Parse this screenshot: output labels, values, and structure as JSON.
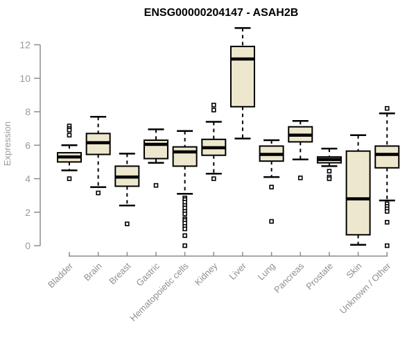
{
  "header": {
    "title": "ENSG00000204147 - ASAH2B"
  },
  "colors": {
    "box_fill": "#EDE8CD",
    "box_stroke": "#000000",
    "median": "#000000",
    "whisker": "#000000",
    "outlier_stroke": "#000000",
    "outlier_fill": "#ffffff",
    "axis_line": "#8c8c8c",
    "tick_text": "#9a9a9a",
    "title_text": "#000000",
    "background": "#ffffff"
  },
  "chart_data": {
    "type": "boxplot",
    "title": "ENSG00000204147 - ASAH2B",
    "xlabel": "",
    "ylabel": "Expression",
    "ylim": [
      0,
      13.2
    ],
    "yticks": [
      0,
      2,
      4,
      6,
      8,
      10,
      12
    ],
    "grid": false,
    "legend": "none",
    "categories": [
      "Bladder",
      "Brain",
      "Breast",
      "Gastric",
      "Hematopoietic cells",
      "Kidney",
      "Liver",
      "Lung",
      "Pancreas",
      "Prostate",
      "Skin",
      "Unknown / Other"
    ],
    "series": [
      {
        "label": "Bladder",
        "whisker_low": 4.5,
        "q1": 5.0,
        "median": 5.3,
        "q3": 5.55,
        "whisker_high": 6.0,
        "outliers": [
          7.15,
          7.0,
          6.9,
          6.6,
          4.0
        ]
      },
      {
        "label": "Brain",
        "whisker_low": 3.5,
        "q1": 5.45,
        "median": 6.15,
        "q3": 6.7,
        "whisker_high": 7.7,
        "outliers": [
          3.15
        ]
      },
      {
        "label": "Breast",
        "whisker_low": 2.4,
        "q1": 3.55,
        "median": 4.1,
        "q3": 4.75,
        "whisker_high": 5.5,
        "outliers": [
          1.3
        ]
      },
      {
        "label": "Gastric",
        "whisker_low": 4.95,
        "q1": 5.2,
        "median": 6.05,
        "q3": 6.3,
        "whisker_high": 6.95,
        "outliers": [
          3.6
        ]
      },
      {
        "label": "Hematopoietic cells",
        "whisker_low": 3.1,
        "q1": 4.75,
        "median": 5.6,
        "q3": 5.9,
        "whisker_high": 6.85,
        "outliers": [
          2.85,
          2.75,
          2.6,
          2.4,
          2.25,
          2.05,
          1.9,
          1.6,
          1.5,
          1.35,
          1.15,
          1.0,
          0.6,
          0.0
        ]
      },
      {
        "label": "Kidney",
        "whisker_low": 4.3,
        "q1": 5.4,
        "median": 5.85,
        "q3": 6.35,
        "whisker_high": 7.4,
        "outliers": [
          8.4,
          8.1,
          4.0
        ]
      },
      {
        "label": "Liver",
        "whisker_low": 6.4,
        "q1": 8.3,
        "median": 11.15,
        "q3": 11.9,
        "whisker_high": 13.0,
        "outliers": []
      },
      {
        "label": "Lung",
        "whisker_low": 4.1,
        "q1": 5.05,
        "median": 5.45,
        "q3": 5.95,
        "whisker_high": 6.3,
        "outliers": [
          3.5,
          1.45
        ]
      },
      {
        "label": "Pancreas",
        "whisker_low": 5.15,
        "q1": 6.2,
        "median": 6.6,
        "q3": 7.1,
        "whisker_high": 7.45,
        "outliers": [
          4.05
        ]
      },
      {
        "label": "Prostate",
        "whisker_low": 4.75,
        "q1": 4.95,
        "median": 5.15,
        "q3": 5.3,
        "whisker_high": 5.8,
        "outliers": [
          4.45,
          4.1,
          4.0
        ]
      },
      {
        "label": "Skin",
        "whisker_low": 0.05,
        "q1": 0.65,
        "median": 2.8,
        "q3": 5.65,
        "whisker_high": 6.6,
        "outliers": []
      },
      {
        "label": "Unknown / Other",
        "whisker_low": 2.7,
        "q1": 4.65,
        "median": 5.45,
        "q3": 5.95,
        "whisker_high": 7.9,
        "outliers": [
          8.2,
          2.5,
          2.35,
          2.2,
          2.05,
          1.4,
          0.0
        ]
      }
    ]
  }
}
